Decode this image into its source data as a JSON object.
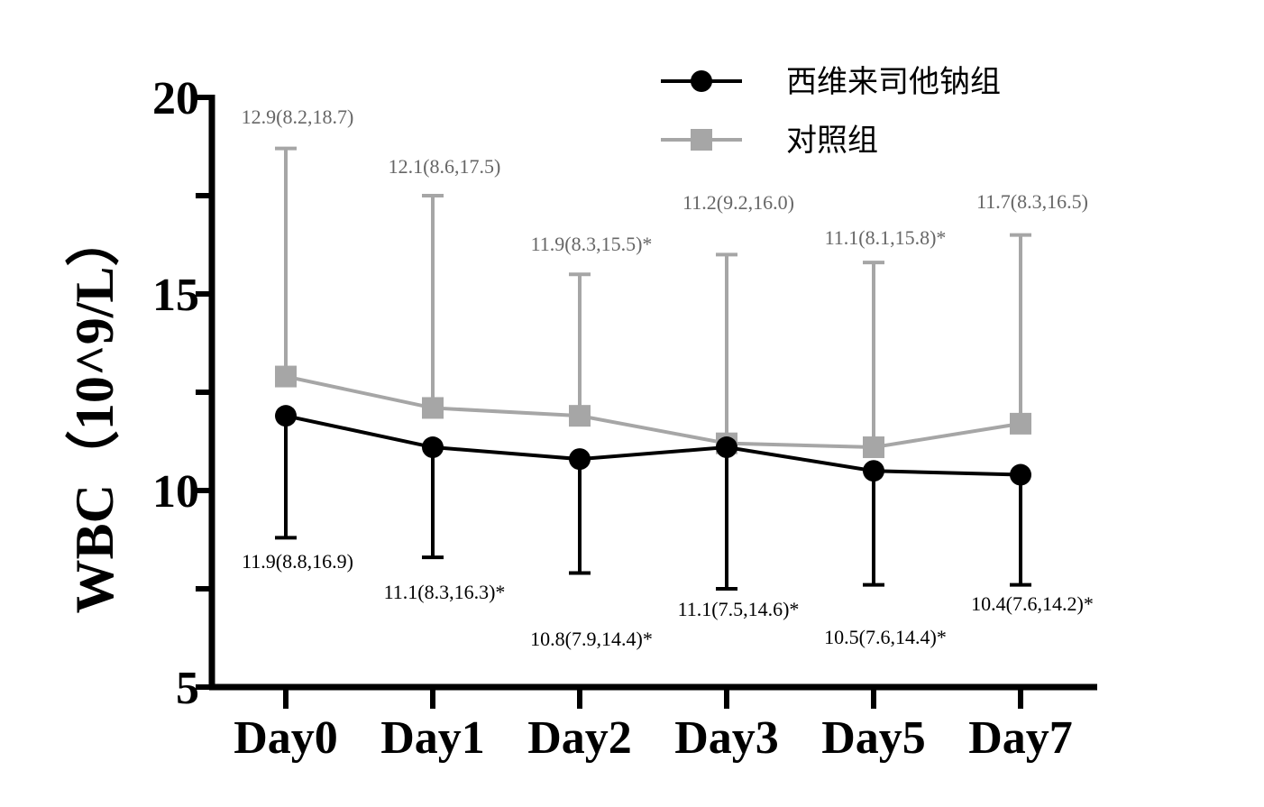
{
  "chart_data": {
    "type": "line",
    "ylabel": "WBC（10^9/L）",
    "xlabel": "",
    "categories": [
      "Day0",
      "Day1",
      "Day2",
      "Day3",
      "Day5",
      "Day7"
    ],
    "ylim": [
      5,
      20
    ],
    "yticks": [
      5,
      10,
      15,
      20
    ],
    "grid": false,
    "legend_position": "top-right",
    "series": [
      {
        "name": "西维来司他钠组",
        "color": "#000000",
        "marker": "circle",
        "values": [
          11.9,
          11.1,
          10.8,
          11.1,
          10.5,
          10.4
        ],
        "lower": [
          8.8,
          8.3,
          7.9,
          7.5,
          7.6,
          7.6
        ],
        "upper": [
          16.9,
          16.3,
          14.4,
          14.6,
          14.4,
          14.2
        ],
        "labels": [
          "11.9(8.8,16.9)",
          "11.1(8.3,16.3)*",
          "10.8(7.9,14.4)*",
          "11.1(7.5,14.6)*",
          "10.5(7.6,14.4)*",
          "10.4(7.6,14.2)*"
        ]
      },
      {
        "name": "对照组",
        "color": "#a6a6a6",
        "marker": "square",
        "values": [
          12.9,
          12.1,
          11.9,
          11.2,
          11.1,
          11.7
        ],
        "lower": [
          8.2,
          8.6,
          8.3,
          9.2,
          8.1,
          8.3
        ],
        "upper": [
          18.7,
          17.5,
          15.5,
          16.0,
          15.8,
          16.5
        ],
        "labels": [
          "12.9(8.2,18.7)",
          "12.1(8.6,17.5)",
          "11.9(8.3,15.5)*",
          "11.2(9.2,16.0)",
          "11.1(8.1,15.8)*",
          "11.7(8.3,16.5)"
        ]
      }
    ]
  }
}
